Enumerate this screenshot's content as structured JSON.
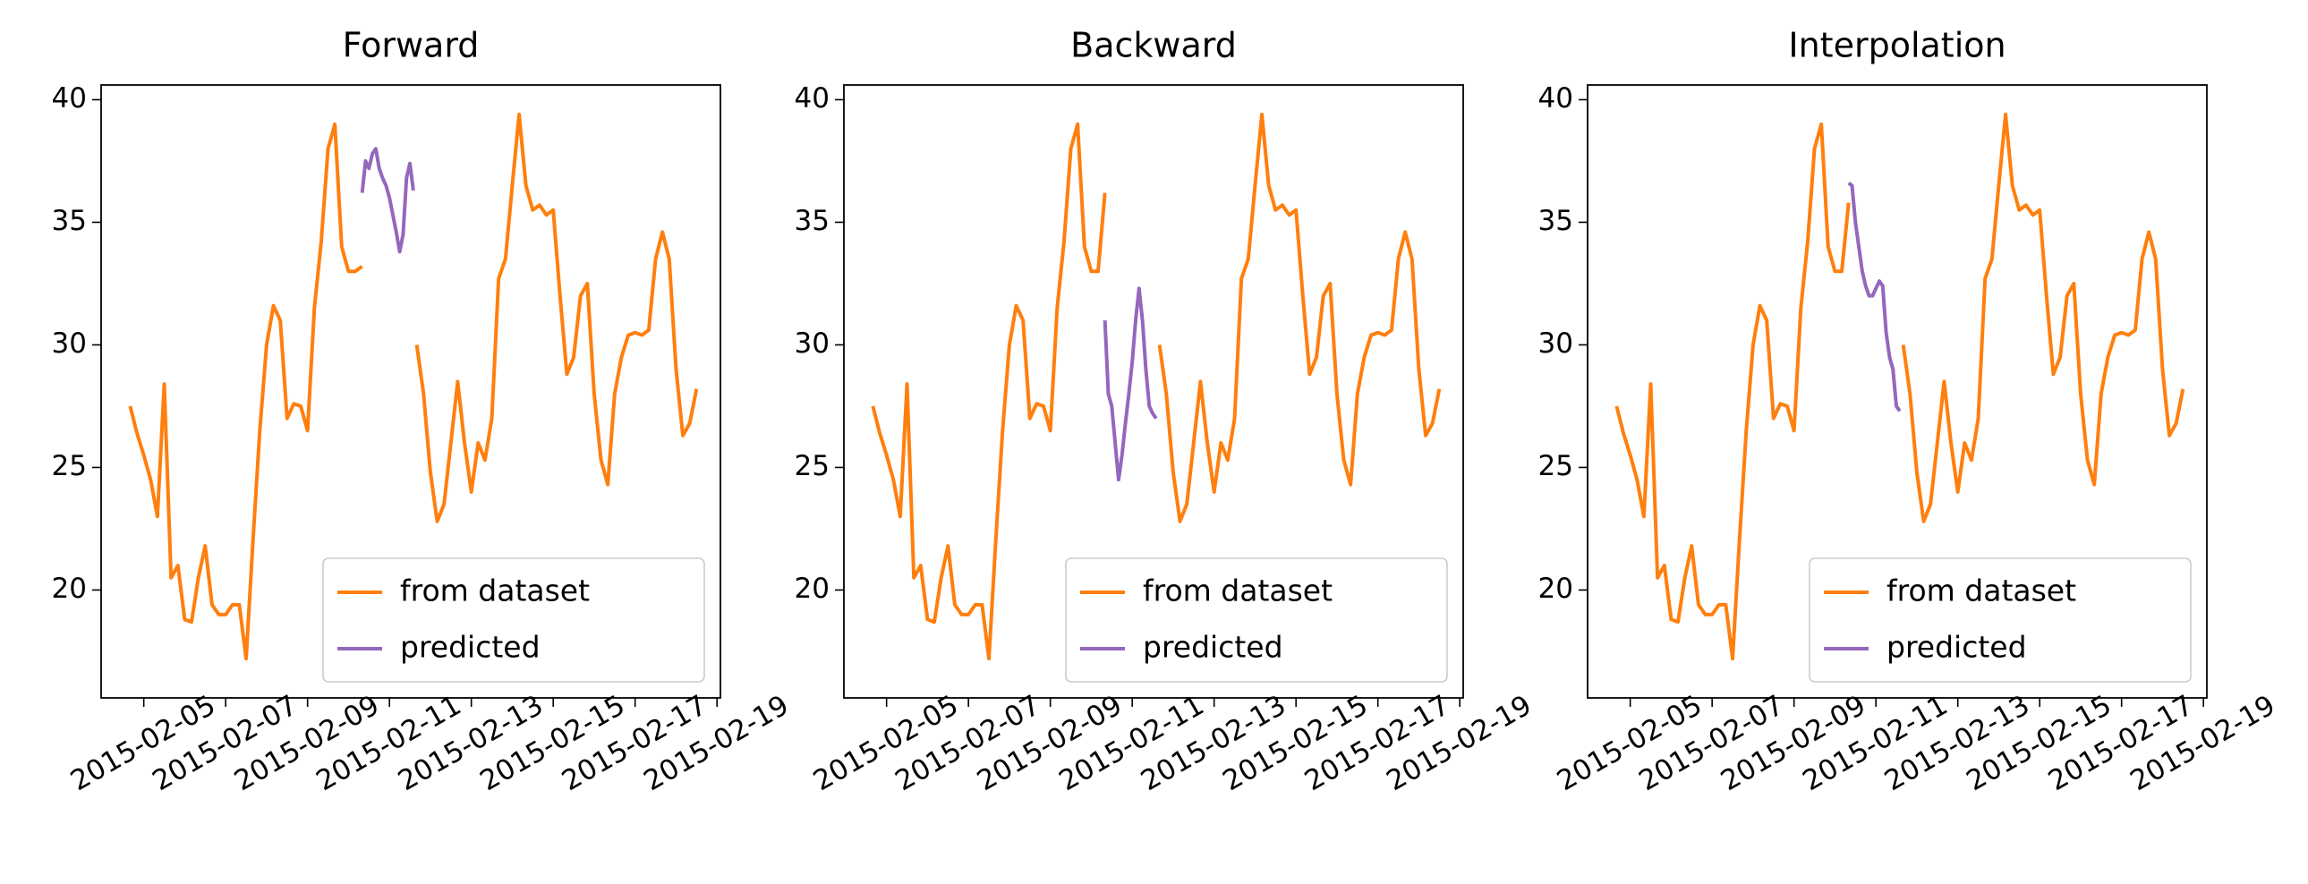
{
  "chart_data": [
    {
      "type": "line",
      "title": "Forward",
      "x": [
        "2015-02-04 16:00",
        "2015-02-04 20:00",
        "2015-02-05 00:00",
        "2015-02-05 04:00",
        "2015-02-05 08:00",
        "2015-02-05 12:00",
        "2015-02-05 16:00",
        "2015-02-05 20:00",
        "2015-02-06 00:00",
        "2015-02-06 04:00",
        "2015-02-06 08:00",
        "2015-02-06 12:00",
        "2015-02-06 16:00",
        "2015-02-06 20:00",
        "2015-02-07 00:00",
        "2015-02-07 04:00",
        "2015-02-07 08:00",
        "2015-02-07 12:00",
        "2015-02-07 16:00",
        "2015-02-07 20:00",
        "2015-02-08 00:00",
        "2015-02-08 04:00",
        "2015-02-08 08:00",
        "2015-02-08 12:00",
        "2015-02-08 16:00",
        "2015-02-08 20:00",
        "2015-02-09 00:00",
        "2015-02-09 04:00",
        "2015-02-09 08:00",
        "2015-02-09 12:00",
        "2015-02-09 16:00",
        "2015-02-09 20:00",
        "2015-02-10 00:00",
        "2015-02-10 04:00",
        "2015-02-10 08:00",
        "2015-02-10 12:00",
        "2015-02-10 16:00",
        "2015-02-10 20:00",
        "2015-02-11 00:00",
        "2015-02-11 04:00",
        "2015-02-11 08:00",
        "2015-02-11 12:00",
        "2015-02-11 16:00",
        "2015-02-11 20:00",
        "2015-02-12 00:00",
        "2015-02-12 04:00",
        "2015-02-12 08:00",
        "2015-02-12 12:00",
        "2015-02-12 16:00",
        "2015-02-12 20:00",
        "2015-02-13 00:00",
        "2015-02-13 04:00",
        "2015-02-13 08:00",
        "2015-02-13 12:00",
        "2015-02-13 16:00",
        "2015-02-13 20:00",
        "2015-02-14 00:00",
        "2015-02-14 04:00",
        "2015-02-14 08:00",
        "2015-02-14 12:00",
        "2015-02-14 16:00",
        "2015-02-14 20:00",
        "2015-02-15 00:00",
        "2015-02-15 04:00",
        "2015-02-15 08:00",
        "2015-02-15 12:00",
        "2015-02-15 16:00",
        "2015-02-15 20:00",
        "2015-02-16 00:00",
        "2015-02-16 04:00",
        "2015-02-16 08:00",
        "2015-02-16 12:00",
        "2015-02-16 16:00",
        "2015-02-16 20:00",
        "2015-02-17 00:00",
        "2015-02-17 04:00",
        "2015-02-17 08:00",
        "2015-02-17 12:00",
        "2015-02-17 16:00",
        "2015-02-17 20:00",
        "2015-02-18 00:00",
        "2015-02-18 04:00",
        "2015-02-18 08:00",
        "2015-02-18 12:00"
      ],
      "series": [
        {
          "name": "from dataset",
          "color": "#ff7f0e",
          "values": [
            27.5,
            26.4,
            25.5,
            24.5,
            23.0,
            28.4,
            20.5,
            21.0,
            18.8,
            18.7,
            20.5,
            21.8,
            19.4,
            19.0,
            19.0,
            19.4,
            19.4,
            17.2,
            22.0,
            26.5,
            30.0,
            31.6,
            31.0,
            27.0,
            27.6,
            27.5,
            26.5,
            31.5,
            34.2,
            38.0,
            39.0,
            34.0,
            33.0,
            33.0,
            33.2,
            null,
            null,
            null,
            null,
            null,
            null,
            null,
            30.0,
            28.0,
            24.8,
            22.8,
            23.5,
            26.0,
            28.5,
            26.0,
            24.0,
            26.0,
            25.3,
            27.0,
            32.7,
            33.5,
            36.5,
            39.4,
            36.5,
            35.5,
            35.7,
            35.3,
            35.5,
            32.0,
            28.8,
            29.5,
            32.0,
            32.5,
            28.0,
            25.3,
            24.3,
            28.0,
            29.5,
            30.4,
            30.5,
            30.4,
            30.6,
            33.5,
            34.6,
            33.5,
            29.0,
            26.3,
            26.8,
            28.2
          ]
        },
        {
          "name": "predicted",
          "color": "#9467bd",
          "x": [
            "2015-02-10 08:00",
            "2015-02-10 10:00",
            "2015-02-10 12:00",
            "2015-02-10 14:00",
            "2015-02-10 16:00",
            "2015-02-10 18:00",
            "2015-02-10 20:00",
            "2015-02-10 22:00",
            "2015-02-11 00:00",
            "2015-02-11 02:00",
            "2015-02-11 04:00",
            "2015-02-11 06:00",
            "2015-02-11 08:00",
            "2015-02-11 10:00",
            "2015-02-11 12:00",
            "2015-02-11 14:00"
          ],
          "values": [
            36.2,
            37.5,
            37.2,
            37.8,
            38.0,
            37.2,
            36.8,
            36.5,
            36.0,
            35.3,
            34.6,
            33.8,
            34.5,
            36.8,
            37.4,
            36.3
          ]
        }
      ],
      "xlim": [
        "2015-02-03 23:00",
        "2015-02-19 02:00"
      ],
      "ylim": [
        15.6,
        40.6
      ],
      "xticks": [
        "2015-02-05",
        "2015-02-07",
        "2015-02-09",
        "2015-02-11",
        "2015-02-13",
        "2015-02-15",
        "2015-02-17",
        "2015-02-19"
      ],
      "yticks": [
        20,
        25,
        30,
        35,
        40
      ],
      "legend": "lower right"
    },
    {
      "type": "line",
      "title": "Backward",
      "x": [
        "2015-02-04 16:00",
        "2015-02-04 20:00",
        "2015-02-05 00:00",
        "2015-02-05 04:00",
        "2015-02-05 08:00",
        "2015-02-05 12:00",
        "2015-02-05 16:00",
        "2015-02-05 20:00",
        "2015-02-06 00:00",
        "2015-02-06 04:00",
        "2015-02-06 08:00",
        "2015-02-06 12:00",
        "2015-02-06 16:00",
        "2015-02-06 20:00",
        "2015-02-07 00:00",
        "2015-02-07 04:00",
        "2015-02-07 08:00",
        "2015-02-07 12:00",
        "2015-02-07 16:00",
        "2015-02-07 20:00",
        "2015-02-08 00:00",
        "2015-02-08 04:00",
        "2015-02-08 08:00",
        "2015-02-08 12:00",
        "2015-02-08 16:00",
        "2015-02-08 20:00",
        "2015-02-09 00:00",
        "2015-02-09 04:00",
        "2015-02-09 08:00",
        "2015-02-09 12:00",
        "2015-02-09 16:00",
        "2015-02-09 20:00",
        "2015-02-10 00:00",
        "2015-02-10 04:00",
        "2015-02-10 08:00",
        "2015-02-10 12:00",
        "2015-02-10 16:00",
        "2015-02-10 20:00",
        "2015-02-11 00:00",
        "2015-02-11 04:00",
        "2015-02-11 08:00",
        "2015-02-11 12:00",
        "2015-02-11 16:00",
        "2015-02-11 20:00",
        "2015-02-12 00:00",
        "2015-02-12 04:00",
        "2015-02-12 08:00",
        "2015-02-12 12:00",
        "2015-02-12 16:00",
        "2015-02-12 20:00",
        "2015-02-13 00:00",
        "2015-02-13 04:00",
        "2015-02-13 08:00",
        "2015-02-13 12:00",
        "2015-02-13 16:00",
        "2015-02-13 20:00",
        "2015-02-14 00:00",
        "2015-02-14 04:00",
        "2015-02-14 08:00",
        "2015-02-14 12:00",
        "2015-02-14 16:00",
        "2015-02-14 20:00",
        "2015-02-15 00:00",
        "2015-02-15 04:00",
        "2015-02-15 08:00",
        "2015-02-15 12:00",
        "2015-02-15 16:00",
        "2015-02-15 20:00",
        "2015-02-16 00:00",
        "2015-02-16 04:00",
        "2015-02-16 08:00",
        "2015-02-16 12:00",
        "2015-02-16 16:00",
        "2015-02-16 20:00",
        "2015-02-17 00:00",
        "2015-02-17 04:00",
        "2015-02-17 08:00",
        "2015-02-17 12:00",
        "2015-02-17 16:00",
        "2015-02-17 20:00",
        "2015-02-18 00:00",
        "2015-02-18 04:00",
        "2015-02-18 08:00",
        "2015-02-18 12:00"
      ],
      "series": [
        {
          "name": "from dataset",
          "color": "#ff7f0e",
          "values": [
            27.5,
            26.4,
            25.5,
            24.5,
            23.0,
            28.4,
            20.5,
            21.0,
            18.8,
            18.7,
            20.5,
            21.8,
            19.4,
            19.0,
            19.0,
            19.4,
            19.4,
            17.2,
            22.0,
            26.5,
            30.0,
            31.6,
            31.0,
            27.0,
            27.6,
            27.5,
            26.5,
            31.5,
            34.2,
            38.0,
            39.0,
            34.0,
            33.0,
            33.0,
            36.2,
            null,
            null,
            null,
            null,
            null,
            null,
            null,
            30.0,
            28.0,
            24.8,
            22.8,
            23.5,
            26.0,
            28.5,
            26.0,
            24.0,
            26.0,
            25.3,
            27.0,
            32.7,
            33.5,
            36.5,
            39.4,
            36.5,
            35.5,
            35.7,
            35.3,
            35.5,
            32.0,
            28.8,
            29.5,
            32.0,
            32.5,
            28.0,
            25.3,
            24.3,
            28.0,
            29.5,
            30.4,
            30.5,
            30.4,
            30.6,
            33.5,
            34.6,
            33.5,
            29.0,
            26.3,
            26.8,
            28.2
          ]
        },
        {
          "name": "predicted",
          "color": "#9467bd",
          "x": [
            "2015-02-10 08:00",
            "2015-02-10 10:00",
            "2015-02-10 12:00",
            "2015-02-10 14:00",
            "2015-02-10 16:00",
            "2015-02-10 18:00",
            "2015-02-10 20:00",
            "2015-02-10 22:00",
            "2015-02-11 00:00",
            "2015-02-11 02:00",
            "2015-02-11 04:00",
            "2015-02-11 06:00",
            "2015-02-11 08:00",
            "2015-02-11 10:00",
            "2015-02-11 12:00",
            "2015-02-11 14:00"
          ],
          "values": [
            31.0,
            28.0,
            27.5,
            26.0,
            24.5,
            25.5,
            26.8,
            28.0,
            29.3,
            31.0,
            32.3,
            31.0,
            29.0,
            27.5,
            27.2,
            27.0
          ]
        }
      ],
      "xlim": [
        "2015-02-03 23:00",
        "2015-02-19 02:00"
      ],
      "ylim": [
        15.6,
        40.6
      ],
      "xticks": [
        "2015-02-05",
        "2015-02-07",
        "2015-02-09",
        "2015-02-11",
        "2015-02-13",
        "2015-02-15",
        "2015-02-17",
        "2015-02-19"
      ],
      "yticks": [
        20,
        25,
        30,
        35,
        40
      ],
      "legend": "lower right"
    },
    {
      "type": "line",
      "title": "Interpolation",
      "x": [
        "2015-02-04 16:00",
        "2015-02-04 20:00",
        "2015-02-05 00:00",
        "2015-02-05 04:00",
        "2015-02-05 08:00",
        "2015-02-05 12:00",
        "2015-02-05 16:00",
        "2015-02-05 20:00",
        "2015-02-06 00:00",
        "2015-02-06 04:00",
        "2015-02-06 08:00",
        "2015-02-06 12:00",
        "2015-02-06 16:00",
        "2015-02-06 20:00",
        "2015-02-07 00:00",
        "2015-02-07 04:00",
        "2015-02-07 08:00",
        "2015-02-07 12:00",
        "2015-02-07 16:00",
        "2015-02-07 20:00",
        "2015-02-08 00:00",
        "2015-02-08 04:00",
        "2015-02-08 08:00",
        "2015-02-08 12:00",
        "2015-02-08 16:00",
        "2015-02-08 20:00",
        "2015-02-09 00:00",
        "2015-02-09 04:00",
        "2015-02-09 08:00",
        "2015-02-09 12:00",
        "2015-02-09 16:00",
        "2015-02-09 20:00",
        "2015-02-10 00:00",
        "2015-02-10 04:00",
        "2015-02-10 08:00",
        "2015-02-10 12:00",
        "2015-02-10 16:00",
        "2015-02-10 20:00",
        "2015-02-11 00:00",
        "2015-02-11 04:00",
        "2015-02-11 08:00",
        "2015-02-11 12:00",
        "2015-02-11 16:00",
        "2015-02-11 20:00",
        "2015-02-12 00:00",
        "2015-02-12 04:00",
        "2015-02-12 08:00",
        "2015-02-12 12:00",
        "2015-02-12 16:00",
        "2015-02-12 20:00",
        "2015-02-13 00:00",
        "2015-02-13 04:00",
        "2015-02-13 08:00",
        "2015-02-13 12:00",
        "2015-02-13 16:00",
        "2015-02-13 20:00",
        "2015-02-14 00:00",
        "2015-02-14 04:00",
        "2015-02-14 08:00",
        "2015-02-14 12:00",
        "2015-02-14 16:00",
        "2015-02-14 20:00",
        "2015-02-15 00:00",
        "2015-02-15 04:00",
        "2015-02-15 08:00",
        "2015-02-15 12:00",
        "2015-02-15 16:00",
        "2015-02-15 20:00",
        "2015-02-16 00:00",
        "2015-02-16 04:00",
        "2015-02-16 08:00",
        "2015-02-16 12:00",
        "2015-02-16 16:00",
        "2015-02-16 20:00",
        "2015-02-17 00:00",
        "2015-02-17 04:00",
        "2015-02-17 08:00",
        "2015-02-17 12:00",
        "2015-02-17 16:00",
        "2015-02-17 20:00",
        "2015-02-18 00:00",
        "2015-02-18 04:00",
        "2015-02-18 08:00",
        "2015-02-18 12:00"
      ],
      "series": [
        {
          "name": "from dataset",
          "color": "#ff7f0e",
          "values": [
            27.5,
            26.4,
            25.5,
            24.5,
            23.0,
            28.4,
            20.5,
            21.0,
            18.8,
            18.7,
            20.5,
            21.8,
            19.4,
            19.0,
            19.0,
            19.4,
            19.4,
            17.2,
            22.0,
            26.5,
            30.0,
            31.6,
            31.0,
            27.0,
            27.6,
            27.5,
            26.5,
            31.5,
            34.2,
            38.0,
            39.0,
            34.0,
            33.0,
            33.0,
            35.8,
            null,
            null,
            null,
            null,
            null,
            null,
            null,
            30.0,
            28.0,
            24.8,
            22.8,
            23.5,
            26.0,
            28.5,
            26.0,
            24.0,
            26.0,
            25.3,
            27.0,
            32.7,
            33.5,
            36.5,
            39.4,
            36.5,
            35.5,
            35.7,
            35.3,
            35.5,
            32.0,
            28.8,
            29.5,
            32.0,
            32.5,
            28.0,
            25.3,
            24.3,
            28.0,
            29.5,
            30.4,
            30.5,
            30.4,
            30.6,
            33.5,
            34.6,
            33.5,
            29.0,
            26.3,
            26.8,
            28.2
          ]
        },
        {
          "name": "predicted",
          "color": "#9467bd",
          "x": [
            "2015-02-10 08:00",
            "2015-02-10 10:00",
            "2015-02-10 12:00",
            "2015-02-10 14:00",
            "2015-02-10 16:00",
            "2015-02-10 18:00",
            "2015-02-10 20:00",
            "2015-02-10 22:00",
            "2015-02-11 00:00",
            "2015-02-11 02:00",
            "2015-02-11 04:00",
            "2015-02-11 06:00",
            "2015-02-11 08:00",
            "2015-02-11 10:00",
            "2015-02-11 12:00",
            "2015-02-11 14:00"
          ],
          "values": [
            36.6,
            36.5,
            35.0,
            34.0,
            33.0,
            32.4,
            32.0,
            32.0,
            32.3,
            32.6,
            32.4,
            30.5,
            29.5,
            29.0,
            27.5,
            27.3
          ]
        }
      ],
      "xlim": [
        "2015-02-03 23:00",
        "2015-02-19 02:00"
      ],
      "ylim": [
        15.6,
        40.6
      ],
      "xticks": [
        "2015-02-05",
        "2015-02-07",
        "2015-02-09",
        "2015-02-11",
        "2015-02-13",
        "2015-02-15",
        "2015-02-17",
        "2015-02-19"
      ],
      "yticks": [
        20,
        25,
        30,
        35,
        40
      ],
      "legend": "lower right"
    }
  ]
}
